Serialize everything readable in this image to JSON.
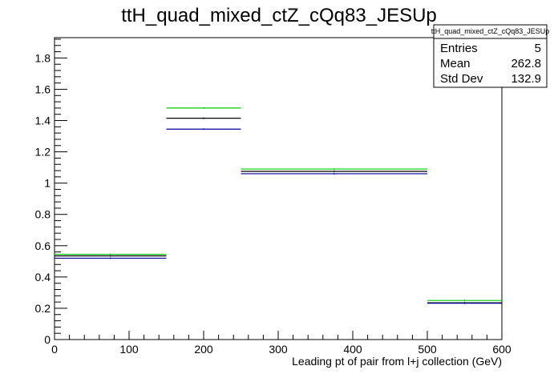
{
  "chart_data": {
    "type": "histogram",
    "title": "ttH_quad_mixed_ctZ_cQq83_JESUp",
    "xlabel": "Leading pt of pair from l+j collection (GeV)",
    "ylabel": "",
    "xlim": [
      0,
      600
    ],
    "ylim": [
      0,
      1.93
    ],
    "x_ticks": [
      0,
      100,
      200,
      300,
      400,
      500,
      600
    ],
    "y_ticks": [
      0,
      0.2,
      0.4,
      0.6,
      0.8,
      1,
      1.2,
      1.4,
      1.6,
      1.8
    ],
    "bin_edges": [
      0,
      150,
      250,
      500,
      600
    ],
    "series": [
      {
        "color": "#00cc00",
        "values": [
          0.545,
          1.48,
          1.09,
          0.25
        ]
      },
      {
        "color": "#000000",
        "values": [
          0.535,
          1.415,
          1.075,
          0.235
        ]
      },
      {
        "color": "#000099",
        "values": [
          0.52,
          1.345,
          1.06,
          0.232
        ]
      }
    ],
    "stats_box": {
      "title": "ttH_quad_mixed_ctZ_cQq83_JESUp",
      "rows": [
        {
          "label": "Entries",
          "value": "5"
        },
        {
          "label": "Mean",
          "value": "262.8"
        },
        {
          "label": "Std Dev",
          "value": "132.9"
        }
      ]
    }
  }
}
